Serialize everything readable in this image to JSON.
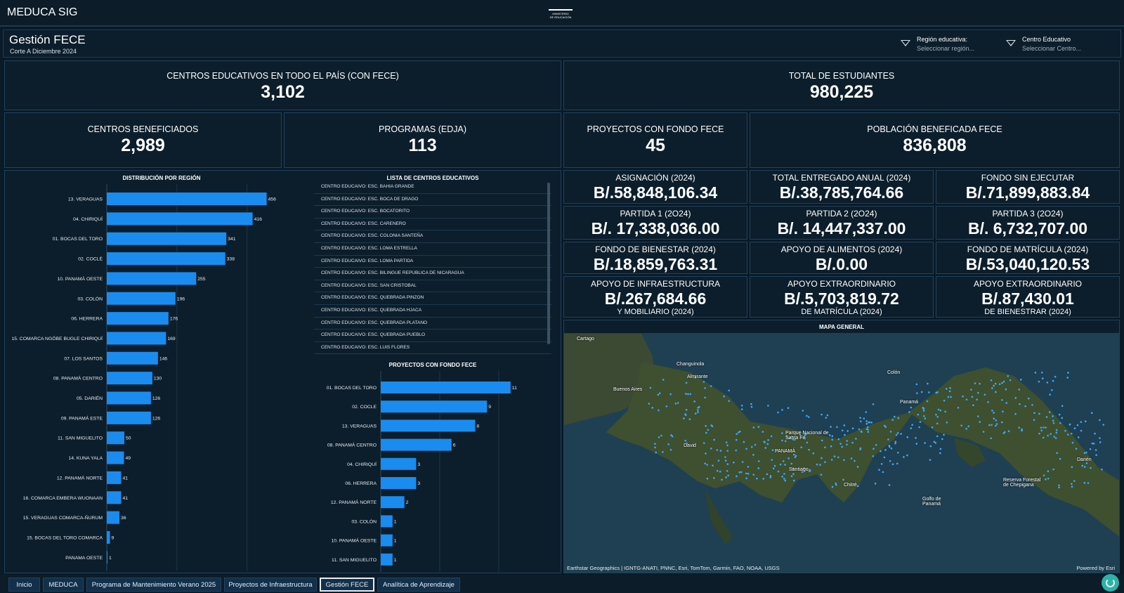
{
  "app": {
    "title": "MEDUCA SIG",
    "logo_text": [
      "MINISTERIO",
      "DE EDUCACIÓN"
    ]
  },
  "header": {
    "title": "Gestión FECE",
    "subtitle": "Corte A Diciembre 2024",
    "filters": [
      {
        "label": "Región educativa:",
        "placeholder": "Seleccionar región..."
      },
      {
        "label": "Centro Educativo",
        "placeholder": "Seleccionar Centro..."
      }
    ]
  },
  "kpis": {
    "centros_total": {
      "title": "CENTROS EDUCATIVOS EN TODO EL PAÍS (CON FECE)",
      "value": "3,102"
    },
    "estudiantes": {
      "title": "TOTAL DE ESTUDIANTES",
      "value": "980,225"
    },
    "beneficiados": {
      "title": "CENTROS BENEFICIADOS",
      "value": "2,989"
    },
    "programas": {
      "title": "PROGRAMAS (EDJA)",
      "value": "113"
    },
    "proyectos": {
      "title": "PROYECTOS CON FONDO FECE",
      "value": "45"
    },
    "poblacion": {
      "title": "POBLACIÓN BENEFICADA FECE",
      "value": "836,808"
    }
  },
  "money": [
    {
      "title": "ASIGNACIÓN (2024)",
      "value": "B/.58,848,106.34",
      "sub": ""
    },
    {
      "title": "TOTAL ENTREGADO ANUAL (2024)",
      "value": "B/.38,785,764.66",
      "sub": ""
    },
    {
      "title": "FONDO SIN EJECUTAR",
      "value": "B/.71,899,883.84",
      "sub": ""
    },
    {
      "title": "PARTIDA 1 (2O24)",
      "value": "B/. 17,338,036.00",
      "sub": ""
    },
    {
      "title": "PARTIDA 2 (2O24)",
      "value": "B/. 14,447,337.00",
      "sub": ""
    },
    {
      "title": "PARTIDA 3 (2O24)",
      "value": "B/. 6,732,707.00",
      "sub": ""
    },
    {
      "title": "FONDO DE BIENESTAR (2024)",
      "value": "B/.18,859,763.31",
      "sub": ""
    },
    {
      "title": "APOYO DE ALIMENTOS (2024)",
      "value": "B/.0.00",
      "sub": ""
    },
    {
      "title": "FONDO DE MATRÍCULA (2024)",
      "value": "B/.53,040,120.53",
      "sub": ""
    },
    {
      "title": "APOYO DE INFRAESTRUCTURA",
      "value": "B/.267,684.66",
      "sub": "Y MOBILIARIO (2024)"
    },
    {
      "title": "APOYO EXTRAORDINARIO",
      "value": "B/.5,703,819.72",
      "sub": "DE MATRÍCULA (2024)"
    },
    {
      "title": "APOYO EXTRAORDINARIO",
      "value": "B/.87,430.01",
      "sub": "DE BIENESTRAR (2024)"
    }
  ],
  "region_chart_title": "DISTRIBUCIÓN POR REGIÓN",
  "list_title": "LISTA DE CENTROS EDUCATIVOS",
  "centros_list": [
    "CENTRO EDUCAIVO: ESC. BAHIA GRANDE",
    "CENTRO EDUCAIVO: ESC. BOCA DE DRAGO",
    "CENTRO EDUCAIVO: ESC. BOCATORITO",
    "CENTRO EDUCAIVO: ESC. CARENERO",
    "CENTRO EDUCAIVO: ESC. COLONIA SANTEÑA",
    "CENTRO EDUCAIVO: ESC. LOMA ESTRELLA",
    "CENTRO EDUCAIVO: ESC. LOMA PARTIDA",
    "CENTRO EDUCAIVO: ESC. BILINGUE REPUBLICA DE NICARAGUA",
    "CENTRO EDUCAIVO: ESC. SAN CRISTOBAL",
    "CENTRO EDUCAIVO: ESC. QUEBRADA PINZON",
    "CENTRO EDUCAIVO: ESC. QUEBRADA HJACA",
    "CENTRO EDUCAIVO: ESC. QUEBRADA PLATANO",
    "CENTRO EDUCAIVO: ESC. QUEBRADA PUEBLO",
    "CENTRO EDUCAIVO: ESC. LUIS FLORES"
  ],
  "proyectos_chart_title": "PROYECTOS CON FONDO FECE",
  "map": {
    "title": "MAPA GENERAL",
    "attribution": "Earthstar Geographics | IGNTG-ANATI, PNNC, Esri, TomTom, Garmin, FAO, NOAA, USGS",
    "powered": "Powered by Esri",
    "labels": [
      "Cartago",
      "Changuinola",
      "Almirante",
      "Colón",
      "Panamá",
      "PANAMÁ",
      "David",
      "Santiago",
      "Chitré",
      "Darién",
      "Golfo de Panamá",
      "Buenos Aires",
      "Reserva Forestal de Chepigana",
      "Parque Nacional de Santa Fe"
    ]
  },
  "tabs": [
    "Inicio",
    "MEDUCA",
    "Programa de Mantenimiento Verano 2025",
    "Proyectos de Infraestructura",
    "Gestión FECE",
    "Analítica de Aprendizaje"
  ],
  "colors": {
    "bar": "#1a8cf0",
    "background": "#0a1a26",
    "panel": "#0c1e2b",
    "border": "#1f4260"
  },
  "chart_data": [
    {
      "type": "bar",
      "orientation": "horizontal",
      "title": "DISTRIBUCIÓN POR REGIÓN",
      "categories": [
        "13. VERAGUAS",
        "04. CHIRIQUÍ",
        "01. BOCAS DEL TORO",
        "02. COCLÉ",
        "10. PANAMÁ OESTE",
        "03. COLÓN",
        "06. HERRERA",
        "15. COMARCA NGÖBE BUGLE CHIRIQUÍ",
        "07. LOS SANTOS",
        "08. PANAMÁ CENTRO",
        "05. DARIÉN",
        "09. PANAMÁ ESTE",
        "11. SAN MIGUELITO",
        "14. KUNA YALA",
        "12. PANAMÁ NORTE",
        "16. COMARCA EMBERA WUONAAN",
        "15. VERAGUAS COMARCA-ÑURUM",
        "15. BOCAS DEL TORO COMARCA",
        "PANAMA OESTE"
      ],
      "values": [
        456,
        416,
        341,
        338,
        255,
        196,
        176,
        169,
        146,
        130,
        126,
        126,
        50,
        49,
        41,
        41,
        36,
        9,
        1
      ],
      "xlim": [
        0,
        1000
      ]
    },
    {
      "type": "bar",
      "orientation": "horizontal",
      "title": "PROYECTOS CON FONDO FECE",
      "categories": [
        "01. BOCAS DEL TORO",
        "02. COCLE",
        "13. VERAGUAS",
        "08. PANAMÁ CENTRO",
        "04. CHIRIQUÍ",
        "06. HERRERA",
        "12. PANAMÁ NORTE",
        "03. COLÓN",
        "10. PANAMÁ OESTE",
        "11. SAN MIGUELITO"
      ],
      "values": [
        11,
        9,
        8,
        6,
        3,
        3,
        2,
        1,
        1,
        1
      ],
      "xlim": [
        0,
        15
      ]
    }
  ]
}
